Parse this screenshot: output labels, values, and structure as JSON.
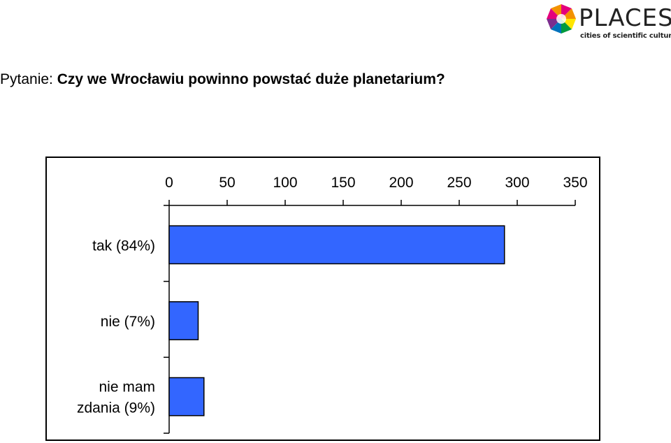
{
  "logo": {
    "word": "PLACES",
    "tagline": "cities of scientific culture",
    "colors": [
      "#e4007c",
      "#f39200",
      "#ffe600",
      "#009a3e",
      "#0072bc",
      "#7b2d8e"
    ]
  },
  "question": {
    "label": "Pytanie: ",
    "text": "Czy we Wrocławiu powinno powstać duże planetarium?"
  },
  "chart_data": {
    "type": "bar",
    "orientation": "horizontal",
    "categories": [
      [
        "tak (84%)"
      ],
      [
        "nie (7%)"
      ],
      [
        "nie mam",
        "zdania (9%)"
      ]
    ],
    "values": [
      289,
      25,
      30
    ],
    "xlim": [
      0,
      350
    ],
    "xticks": [
      "0",
      "50",
      "100",
      "150",
      "200",
      "250",
      "300",
      "350"
    ],
    "x_axis_position": "top",
    "bar_color": "#3366ff",
    "grid": false,
    "legend": "none"
  }
}
